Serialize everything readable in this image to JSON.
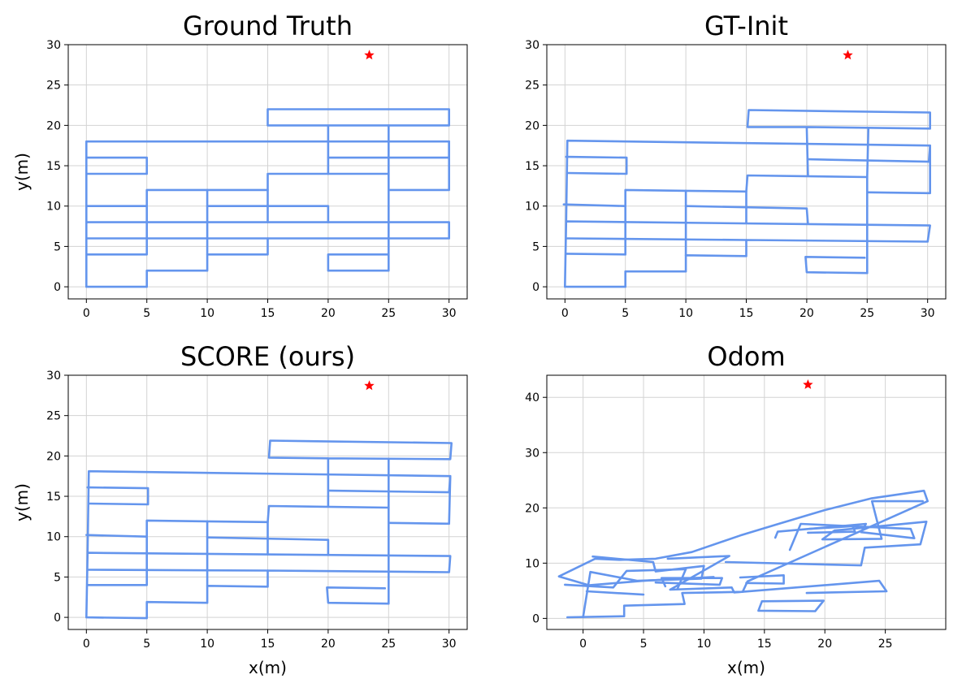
{
  "chart_data": [
    {
      "type": "line",
      "title": "Ground Truth",
      "xlabel": "",
      "ylabel": "y(m)",
      "xlim": [
        -1.5,
        31.5
      ],
      "ylim": [
        -1.5,
        30
      ],
      "xticks": [
        0,
        5,
        10,
        15,
        20,
        25,
        30
      ],
      "yticks": [
        0,
        5,
        10,
        15,
        20,
        25,
        30
      ],
      "grid": true,
      "color": "#6495ed",
      "marker": {
        "x": 23.4,
        "y": 28.7,
        "color": "#ff0000",
        "symbol": "star"
      },
      "segments": [
        [
          [
            0,
            0
          ],
          [
            5,
            0
          ],
          [
            5,
            2
          ],
          [
            10,
            2
          ],
          [
            10,
            4
          ],
          [
            15,
            4
          ],
          [
            15,
            6
          ],
          [
            30,
            6
          ],
          [
            30,
            8
          ],
          [
            0,
            8
          ],
          [
            0,
            0
          ]
        ],
        [
          [
            0,
            4
          ],
          [
            5,
            4
          ],
          [
            5,
            12
          ],
          [
            10,
            12
          ],
          [
            10,
            4
          ]
        ],
        [
          [
            0,
            6
          ],
          [
            15,
            6
          ]
        ],
        [
          [
            10,
            10
          ],
          [
            20,
            10
          ],
          [
            20,
            8
          ]
        ],
        [
          [
            15,
            8
          ],
          [
            15,
            12
          ],
          [
            10,
            12
          ]
        ],
        [
          [
            0,
            10
          ],
          [
            5,
            10
          ]
        ],
        [
          [
            15,
            12
          ],
          [
            15,
            14
          ],
          [
            25,
            14
          ],
          [
            25,
            2
          ],
          [
            20,
            2
          ],
          [
            20,
            4
          ],
          [
            25,
            4
          ]
        ],
        [
          [
            0,
            8
          ],
          [
            0,
            18
          ],
          [
            30,
            18
          ],
          [
            30,
            12
          ],
          [
            25,
            12
          ]
        ],
        [
          [
            0,
            14
          ],
          [
            5,
            14
          ],
          [
            5,
            16
          ],
          [
            0,
            16
          ]
        ],
        [
          [
            20,
            14
          ],
          [
            20,
            20
          ],
          [
            30,
            20
          ],
          [
            30,
            22
          ],
          [
            15,
            22
          ],
          [
            15,
            20
          ],
          [
            20,
            20
          ]
        ],
        [
          [
            20,
            16
          ],
          [
            30,
            16
          ],
          [
            30,
            18
          ]
        ],
        [
          [
            25,
            20
          ],
          [
            25,
            14
          ]
        ]
      ]
    },
    {
      "type": "line",
      "title": "GT-Init",
      "xlabel": "",
      "ylabel": "",
      "xlim": [
        -1.5,
        31.5
      ],
      "ylim": [
        -1.5,
        30
      ],
      "xticks": [
        0,
        5,
        10,
        15,
        20,
        25,
        30
      ],
      "yticks": [
        0,
        5,
        10,
        15,
        20,
        25,
        30
      ],
      "grid": true,
      "color": "#6495ed",
      "marker": {
        "x": 23.4,
        "y": 28.7,
        "color": "#ff0000",
        "symbol": "star"
      },
      "segments": [
        [
          [
            0,
            0
          ],
          [
            5,
            0
          ],
          [
            5,
            1.9
          ],
          [
            10,
            1.9
          ],
          [
            10,
            3.9
          ],
          [
            15,
            3.8
          ],
          [
            15,
            5.8
          ],
          [
            30,
            5.6
          ],
          [
            30.2,
            7.6
          ],
          [
            0.1,
            8.1
          ],
          [
            0,
            0
          ]
        ],
        [
          [
            0.1,
            4.1
          ],
          [
            5,
            4
          ],
          [
            5,
            12
          ],
          [
            10,
            11.9
          ],
          [
            10,
            3.9
          ]
        ],
        [
          [
            0.2,
            6
          ],
          [
            15,
            5.8
          ]
        ],
        [
          [
            10,
            10
          ],
          [
            20,
            9.7
          ],
          [
            20.1,
            7.8
          ]
        ],
        [
          [
            15,
            7.9
          ],
          [
            15,
            11.8
          ],
          [
            10,
            11.9
          ]
        ],
        [
          [
            -0.1,
            10.2
          ],
          [
            5,
            10
          ]
        ],
        [
          [
            15,
            11.8
          ],
          [
            15.1,
            13.8
          ],
          [
            25,
            13.6
          ],
          [
            25,
            1.7
          ],
          [
            20,
            1.8
          ],
          [
            19.9,
            3.7
          ],
          [
            24.8,
            3.6
          ]
        ],
        [
          [
            0.1,
            8.1
          ],
          [
            0.2,
            18.1
          ],
          [
            30.2,
            17.5
          ],
          [
            30.2,
            11.6
          ],
          [
            25.1,
            11.7
          ]
        ],
        [
          [
            0.2,
            14.1
          ],
          [
            5.1,
            14
          ],
          [
            5.1,
            16
          ],
          [
            0.1,
            16.1
          ]
        ],
        [
          [
            20.1,
            13.8
          ],
          [
            20,
            19.8
          ],
          [
            30.2,
            19.6
          ],
          [
            30.2,
            21.6
          ],
          [
            15.2,
            21.9
          ],
          [
            15.1,
            19.8
          ],
          [
            20,
            19.8
          ]
        ],
        [
          [
            20.1,
            15.8
          ],
          [
            30.1,
            15.5
          ],
          [
            30.2,
            17.5
          ]
        ],
        [
          [
            25.1,
            19.7
          ],
          [
            25,
            13.6
          ]
        ]
      ]
    },
    {
      "type": "line",
      "title": "SCORE (ours)",
      "xlabel": "x(m)",
      "ylabel": "y(m)",
      "xlim": [
        -1.5,
        31.5
      ],
      "ylim": [
        -1.5,
        30
      ],
      "xticks": [
        0,
        5,
        10,
        15,
        20,
        25,
        30
      ],
      "yticks": [
        0,
        5,
        10,
        15,
        20,
        25,
        30
      ],
      "grid": true,
      "color": "#6495ed",
      "marker": {
        "x": 23.4,
        "y": 28.7,
        "color": "#ff0000",
        "symbol": "star"
      },
      "segments": [
        [
          [
            0,
            0
          ],
          [
            5,
            -0.1
          ],
          [
            5,
            1.9
          ],
          [
            10,
            1.8
          ],
          [
            10,
            3.9
          ],
          [
            15,
            3.8
          ],
          [
            15,
            5.8
          ],
          [
            30,
            5.6
          ],
          [
            30.1,
            7.6
          ],
          [
            0.1,
            8
          ],
          [
            0,
            0
          ]
        ],
        [
          [
            0.1,
            4
          ],
          [
            5,
            4
          ],
          [
            5,
            12
          ],
          [
            10,
            11.9
          ],
          [
            10,
            3.9
          ]
        ],
        [
          [
            0.2,
            5.9
          ],
          [
            15,
            5.8
          ]
        ],
        [
          [
            10,
            9.9
          ],
          [
            20,
            9.6
          ],
          [
            20,
            7.8
          ]
        ],
        [
          [
            15,
            7.8
          ],
          [
            15,
            11.8
          ],
          [
            10,
            11.9
          ]
        ],
        [
          [
            0,
            10.2
          ],
          [
            5,
            10
          ]
        ],
        [
          [
            15,
            11.8
          ],
          [
            15.1,
            13.8
          ],
          [
            25,
            13.6
          ],
          [
            25,
            1.7
          ],
          [
            20,
            1.8
          ],
          [
            19.9,
            3.7
          ],
          [
            24.7,
            3.6
          ]
        ],
        [
          [
            0.1,
            8
          ],
          [
            0.2,
            18.1
          ],
          [
            30.1,
            17.5
          ],
          [
            30,
            11.6
          ],
          [
            25,
            11.7
          ]
        ],
        [
          [
            0.2,
            14.1
          ],
          [
            5.1,
            14
          ],
          [
            5.1,
            16
          ],
          [
            0.1,
            16.1
          ]
        ],
        [
          [
            20,
            13.8
          ],
          [
            20,
            19.7
          ],
          [
            30.1,
            19.6
          ],
          [
            30.2,
            21.6
          ],
          [
            15.2,
            21.9
          ],
          [
            15.1,
            19.8
          ],
          [
            20,
            19.7
          ]
        ],
        [
          [
            20.1,
            15.7
          ],
          [
            30,
            15.5
          ],
          [
            30.1,
            17.5
          ]
        ],
        [
          [
            25,
            19.6
          ],
          [
            25,
            13.6
          ]
        ]
      ]
    },
    {
      "type": "line",
      "title": "Odom",
      "xlabel": "x(m)",
      "ylabel": "",
      "xlim": [
        -3,
        30
      ],
      "ylim": [
        -2,
        44
      ],
      "xticks": [
        0,
        5,
        10,
        15,
        20,
        25
      ],
      "yticks": [
        0,
        10,
        20,
        30,
        40
      ],
      "grid": true,
      "color": "#6495ed",
      "marker": {
        "x": 18.6,
        "y": 42.3,
        "color": "#ff0000",
        "symbol": "star"
      },
      "segments": [
        [
          [
            -1.3,
            0.2
          ],
          [
            3.4,
            0.4
          ],
          [
            3.4,
            2.3
          ],
          [
            8.4,
            2.6
          ],
          [
            8.2,
            4.6
          ],
          [
            13.2,
            4.8
          ],
          [
            13.6,
            6.7
          ],
          [
            28.5,
            21.2
          ],
          [
            28.2,
            23.1
          ],
          [
            23.8,
            21.7
          ],
          [
            20,
            19.6
          ],
          [
            16,
            17
          ],
          [
            13,
            15
          ],
          [
            9,
            12
          ],
          [
            6,
            10.8
          ],
          [
            3,
            10.6
          ],
          [
            1,
            10.8
          ],
          [
            -2,
            7.6
          ],
          [
            0.5,
            6
          ],
          [
            5,
            6.8
          ],
          [
            10.8,
            7.5
          ]
        ],
        [
          [
            -1.5,
            6.1
          ],
          [
            2.5,
            5.6
          ],
          [
            3.6,
            8.6
          ],
          [
            8.5,
            8.9
          ],
          [
            7.8,
            5.3
          ]
        ],
        [
          [
            0.3,
            4.9
          ],
          [
            5,
            4.3
          ]
        ],
        [
          [
            6,
            6.5
          ],
          [
            11.3,
            6.1
          ],
          [
            11.5,
            7.3
          ],
          [
            6.5,
            7.3
          ],
          [
            6.8,
            5.8
          ]
        ],
        [
          [
            0.8,
            11.2
          ],
          [
            5.8,
            10.2
          ],
          [
            6,
            8.5
          ],
          [
            10,
            9.5
          ],
          [
            9.8,
            7.2
          ],
          [
            4.5,
            6.8
          ],
          [
            0.6,
            8.4
          ],
          [
            0,
            0.2
          ]
        ],
        [
          [
            7,
            10.8
          ],
          [
            12.1,
            11.3
          ],
          [
            7.2,
            5.2
          ],
          [
            12.3,
            5.6
          ],
          [
            12.5,
            4.7
          ],
          [
            24.5,
            6.8
          ],
          [
            25.1,
            4.9
          ],
          [
            18.5,
            4.6
          ]
        ],
        [
          [
            13,
            7.4
          ],
          [
            16.6,
            7.8
          ],
          [
            16.6,
            6.3
          ],
          [
            13.5,
            6.4
          ]
        ],
        [
          [
            14.8,
            3.1
          ],
          [
            19.9,
            3.2
          ],
          [
            19.2,
            1.3
          ],
          [
            14.5,
            1.4
          ],
          [
            14.8,
            3.1
          ]
        ],
        [
          [
            11.8,
            10.2
          ],
          [
            23,
            9.6
          ],
          [
            23.3,
            12.8
          ],
          [
            27.9,
            13.4
          ],
          [
            28.4,
            17.5
          ],
          [
            20.8,
            15.9
          ],
          [
            19.8,
            14.3
          ],
          [
            24.7,
            14.4
          ],
          [
            23.9,
            21.2
          ],
          [
            28.1,
            21.2
          ]
        ],
        [
          [
            15.9,
            14.6
          ],
          [
            16.1,
            15.7
          ],
          [
            23.4,
            17.1
          ],
          [
            23,
            15.6
          ],
          [
            27.4,
            14.5
          ],
          [
            27.1,
            16.2
          ],
          [
            18,
            17.1
          ],
          [
            17.1,
            12.4
          ]
        ],
        [
          [
            18.7,
            16.2
          ],
          [
            22.3,
            16.7
          ],
          [
            22.5,
            15.7
          ],
          [
            18.6,
            15.5
          ]
        ]
      ]
    }
  ]
}
